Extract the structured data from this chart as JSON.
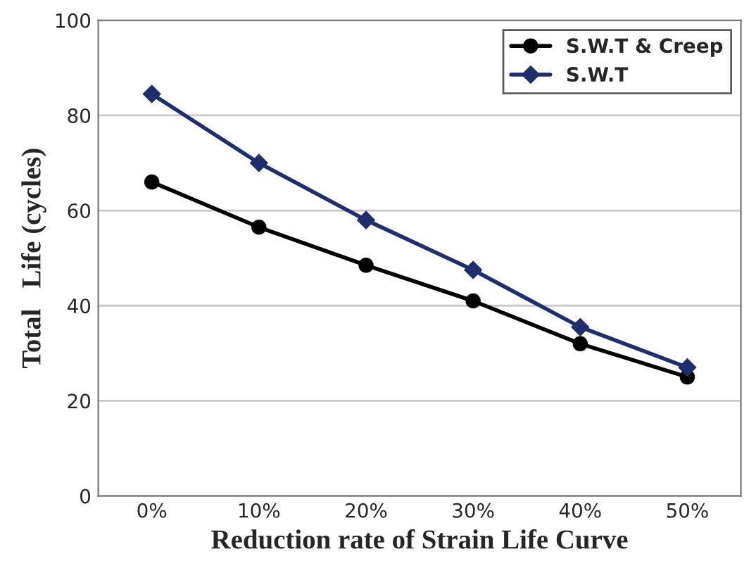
{
  "chart_data": {
    "type": "line",
    "xlabel": "Reduction rate of Strain Life Curve",
    "ylabel": "Total   Life (cycles)",
    "categories": [
      "0%",
      "10%",
      "20%",
      "30%",
      "40%",
      "50%"
    ],
    "series": [
      {
        "name": "S.W.T & Creep",
        "color": "#000000",
        "marker": "circle",
        "values": [
          66,
          56.5,
          48.5,
          41,
          32,
          25
        ]
      },
      {
        "name": "S.W.T",
        "color": "#1f2f6e",
        "marker": "diamond",
        "values": [
          84.5,
          70,
          58,
          47.5,
          35.5,
          27
        ]
      }
    ],
    "ylim": [
      0,
      100
    ],
    "yticks": [
      0,
      20,
      40,
      60,
      80,
      100
    ],
    "grid": "y",
    "legend": "top right"
  }
}
